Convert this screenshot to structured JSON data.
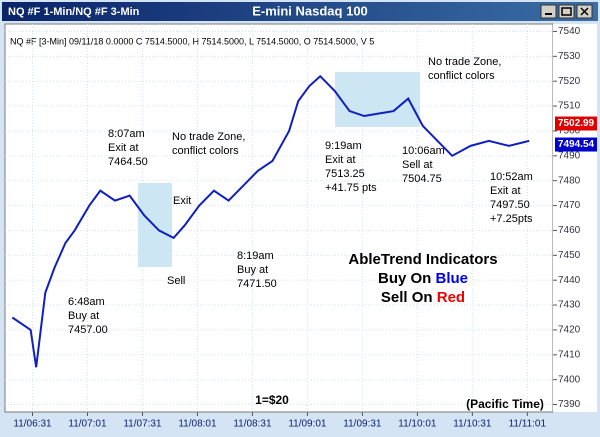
{
  "window": {
    "left_title": "NQ #F 1-Min/NQ #F 3-Min",
    "title": "E-mini Nasdaq 100"
  },
  "chart_data": {
    "type": "line",
    "info": "NQ #F [3-Min] 09/11/18  0.0000 C 7514.5000, H 7514.5000, L 7514.5000, O 7514.5000, V 5",
    "x": [
      380,
      390,
      393,
      398,
      403,
      409,
      414,
      422,
      428,
      436,
      444,
      452,
      460,
      468,
      474,
      482,
      490,
      498,
      506,
      514,
      522,
      531,
      536,
      542,
      548,
      556,
      564,
      572,
      580,
      588,
      596,
      604,
      612,
      620,
      630,
      640,
      651,
      662
    ],
    "series": [
      {
        "name": "NQ #F",
        "color": "#1020c0",
        "values": [
          7425,
          7420,
          7405,
          7435,
          7445,
          7455,
          7460,
          7470,
          7476,
          7472,
          7474,
          7466,
          7460,
          7457,
          7462,
          7470,
          7476,
          7472,
          7478,
          7484,
          7488,
          7500,
          7512,
          7518,
          7522,
          7516,
          7508,
          7506,
          7507,
          7508,
          7513,
          7502,
          7496,
          7490,
          7494,
          7496,
          7494,
          7496
        ]
      }
    ],
    "xlim": [
      376,
      675
    ],
    "xticks": [
      {
        "value": 391,
        "label": "11/06:31"
      },
      {
        "value": 421,
        "label": "11/07:01"
      },
      {
        "value": 451,
        "label": "11/07:31"
      },
      {
        "value": 481,
        "label": "11/08:01"
      },
      {
        "value": 511,
        "label": "11/08:31"
      },
      {
        "value": 541,
        "label": "11/09:01"
      },
      {
        "value": 571,
        "label": "11/09:31"
      },
      {
        "value": 601,
        "label": "11/10:01"
      },
      {
        "value": 631,
        "label": "11/10:31"
      },
      {
        "value": 661,
        "label": "11/11:01"
      }
    ],
    "ylim": [
      7387,
      7543
    ],
    "yticks": [
      7390,
      7400,
      7410,
      7420,
      7430,
      7440,
      7450,
      7460,
      7470,
      7480,
      7490,
      7500,
      7510,
      7520,
      7530,
      7540
    ],
    "grid": true,
    "price_tags": [
      {
        "value": 7502.99,
        "color": "#e00000"
      },
      {
        "value": 7494.54,
        "color": "#0000cc"
      }
    ],
    "annotations": [
      [
        "8:07am",
        "Exit at",
        "7464.50"
      ],
      [
        "No trade Zone,",
        "conflict colors"
      ],
      [
        "Exit"
      ],
      [
        "Sell"
      ],
      [
        "8:19am",
        "Buy at",
        "7471.50"
      ],
      [
        "6:48am",
        "Buy at",
        "7457.00"
      ],
      [
        "No trade Zone,",
        "conflict colors"
      ],
      [
        "9:19am",
        "Exit at",
        "7513.25",
        "+41.75 pts"
      ],
      [
        "10:06am",
        "Sell at",
        "7504.75"
      ],
      [
        "10:52am",
        "Exit at",
        "7497.50",
        "+7.25pts"
      ]
    ],
    "legend_title": "AbleTrend Indicators",
    "legend_buy": [
      "Buy On",
      "Blue"
    ],
    "legend_sell": [
      "Sell On",
      "Red"
    ],
    "scale_note": "1=$20",
    "timezone_note": "(Pacific Time)"
  }
}
